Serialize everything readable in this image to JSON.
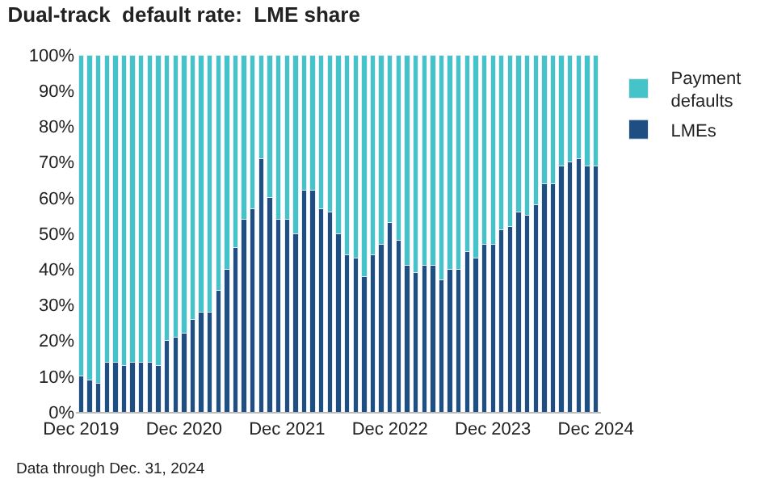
{
  "chart_data": {
    "type": "bar",
    "title": "Dual-track  default rate:  LME share",
    "categories": [
      "Dec 2019",
      null,
      null,
      null,
      null,
      null,
      null,
      null,
      null,
      null,
      null,
      null,
      "Dec 2020",
      null,
      null,
      null,
      null,
      null,
      null,
      null,
      null,
      null,
      null,
      null,
      "Dec 2021",
      null,
      null,
      null,
      null,
      null,
      null,
      null,
      null,
      null,
      null,
      null,
      "Dec 2022",
      null,
      null,
      null,
      null,
      null,
      null,
      null,
      null,
      null,
      null,
      null,
      "Dec 2023",
      null,
      null,
      null,
      null,
      null,
      null,
      null,
      null,
      null,
      null,
      null,
      "Dec 2024"
    ],
    "stacked": true,
    "series": [
      {
        "name": "LMEs",
        "color": "#1f4e82",
        "values": [
          10,
          9,
          8,
          14,
          14,
          13,
          14,
          14,
          14,
          13,
          20,
          21,
          22,
          26,
          28,
          28,
          34,
          40,
          46,
          54,
          57,
          71,
          60,
          54,
          54,
          50,
          62,
          62,
          57,
          56,
          50,
          44,
          43,
          38,
          44,
          47,
          53,
          48,
          41,
          39,
          41,
          41,
          37,
          40,
          40,
          45,
          43,
          47,
          47,
          51,
          52,
          56,
          55,
          58,
          64,
          64,
          69,
          70,
          71,
          69,
          69
        ]
      },
      {
        "name": "Payment defaults",
        "color": "#44c4c8",
        "values": [
          90,
          91,
          92,
          86,
          86,
          87,
          86,
          86,
          86,
          87,
          80,
          79,
          78,
          74,
          72,
          72,
          66,
          60,
          54,
          46,
          43,
          29,
          40,
          46,
          46,
          50,
          38,
          38,
          43,
          44,
          50,
          56,
          57,
          62,
          56,
          53,
          47,
          52,
          59,
          61,
          59,
          59,
          63,
          60,
          60,
          55,
          57,
          53,
          53,
          49,
          48,
          44,
          45,
          42,
          36,
          36,
          31,
          30,
          29,
          31,
          31
        ]
      }
    ],
    "ylim": [
      0,
      100
    ],
    "yticks": [
      {
        "value": 0,
        "label": "0%"
      },
      {
        "value": 10,
        "label": "10%"
      },
      {
        "value": 20,
        "label": "20%"
      },
      {
        "value": 30,
        "label": "30%"
      },
      {
        "value": 40,
        "label": "40%"
      },
      {
        "value": 50,
        "label": "50%"
      },
      {
        "value": 60,
        "label": "60%"
      },
      {
        "value": 70,
        "label": "70%"
      },
      {
        "value": 80,
        "label": "80%"
      },
      {
        "value": 90,
        "label": "90%"
      },
      {
        "value": 100,
        "label": "100%"
      }
    ],
    "legend": "top right",
    "annotations": [
      "Data through Dec. 31, 2024"
    ]
  }
}
